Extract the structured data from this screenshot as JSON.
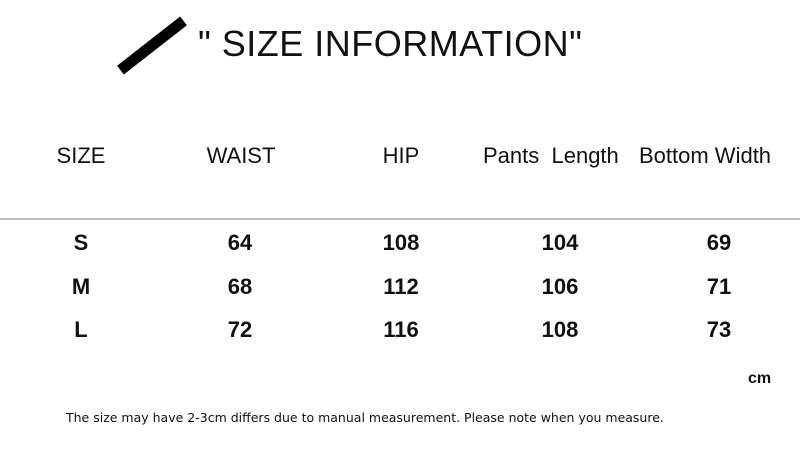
{
  "title": "\" SIZE INFORMATION\"",
  "table": {
    "headers": [
      "SIZE",
      "WAIST",
      "HIP",
      "Pants  Length",
      "Bottom Width"
    ],
    "rows": [
      [
        "S",
        "64",
        "108",
        "104",
        "69"
      ],
      [
        "M",
        "68",
        "112",
        "106",
        "71"
      ],
      [
        "L",
        "72",
        "116",
        "108",
        "73"
      ]
    ],
    "unit": "cm"
  },
  "note": "The size may have 2-3cm differs due to manual measurement. Please note when you measure."
}
